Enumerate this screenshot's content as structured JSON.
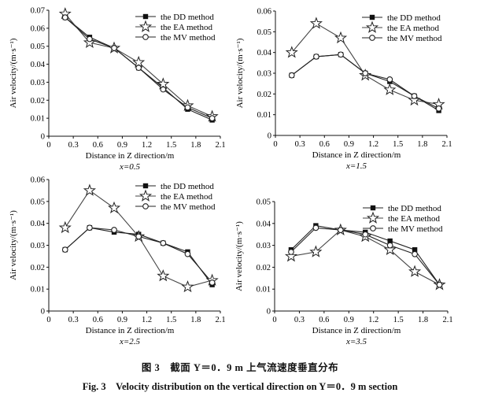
{
  "chart_data": [
    {
      "type": "line",
      "panel_label": "x=0.5",
      "xlabel": "Distance in Z direction/m",
      "ylabel": "Air velocity/(m·s⁻¹)",
      "xlim": [
        0,
        2.1
      ],
      "ylim": [
        0,
        0.07
      ],
      "xticks": [
        "0",
        "0.3",
        "0.6",
        "0.9",
        "1.2",
        "1.5",
        "1.8",
        "2.1"
      ],
      "yticks": [
        "0",
        "0.01",
        "0.02",
        "0.03",
        "0.04",
        "0.05",
        "0.06",
        "0.07"
      ],
      "legend": "top-right",
      "x": [
        0.2,
        0.5,
        0.8,
        1.1,
        1.4,
        1.7,
        2.0
      ],
      "series": [
        {
          "name": "the DD method",
          "marker": "square",
          "values": [
            0.066,
            0.055,
            0.049,
            0.038,
            0.027,
            0.015,
            0.009
          ]
        },
        {
          "name": "the EA method",
          "marker": "star",
          "values": [
            0.068,
            0.052,
            0.049,
            0.041,
            0.029,
            0.017,
            0.011
          ]
        },
        {
          "name": "the MV method",
          "marker": "circle",
          "values": [
            0.066,
            0.054,
            0.049,
            0.038,
            0.026,
            0.016,
            0.01
          ]
        }
      ]
    },
    {
      "type": "line",
      "panel_label": "x=1.5",
      "xlabel": "Distance in Z direction/m",
      "ylabel": "Air velocity/(m·s⁻¹)",
      "xlim": [
        0,
        2.1
      ],
      "ylim": [
        0,
        0.06
      ],
      "xticks": [
        "0",
        "0.3",
        "0.6",
        "0.9",
        "1.2",
        "1.5",
        "1.8",
        "2.1"
      ],
      "yticks": [
        "0",
        "0.01",
        "0.02",
        "0.03",
        "0.04",
        "0.05",
        "0.06"
      ],
      "legend": "top-right",
      "x": [
        0.2,
        0.5,
        0.8,
        1.1,
        1.4,
        1.7,
        2.0
      ],
      "series": [
        {
          "name": "the DD method",
          "marker": "square",
          "values": [
            0.029,
            0.038,
            0.039,
            0.03,
            0.026,
            0.019,
            0.012
          ]
        },
        {
          "name": "the EA method",
          "marker": "star",
          "values": [
            0.04,
            0.054,
            0.047,
            0.029,
            0.022,
            0.017,
            0.015
          ]
        },
        {
          "name": "the MV method",
          "marker": "circle",
          "values": [
            0.029,
            0.038,
            0.039,
            0.03,
            0.027,
            0.019,
            0.013
          ]
        }
      ]
    },
    {
      "type": "line",
      "panel_label": "x=2.5",
      "xlabel": "Distance in Z direction/m",
      "ylabel": "Air velocity/(m·s⁻¹)",
      "xlim": [
        0,
        2.1
      ],
      "ylim": [
        0,
        0.06
      ],
      "xticks": [
        "0",
        "0.3",
        "0.6",
        "0.9",
        "1.2",
        "1.5",
        "1.8",
        "2.1"
      ],
      "yticks": [
        "0",
        "0.01",
        "0.02",
        "0.03",
        "0.04",
        "0.05",
        "0.06"
      ],
      "legend": "top-right",
      "x": [
        0.2,
        0.5,
        0.8,
        1.1,
        1.4,
        1.7,
        2.0
      ],
      "series": [
        {
          "name": "the DD method",
          "marker": "square",
          "values": [
            0.028,
            0.038,
            0.036,
            0.035,
            0.031,
            0.027,
            0.012
          ]
        },
        {
          "name": "the EA method",
          "marker": "star",
          "values": [
            0.038,
            0.055,
            0.047,
            0.034,
            0.016,
            0.011,
            0.014
          ]
        },
        {
          "name": "the MV method",
          "marker": "circle",
          "values": [
            0.028,
            0.038,
            0.037,
            0.034,
            0.031,
            0.026,
            0.013
          ]
        }
      ]
    },
    {
      "type": "line",
      "panel_label": "x=3.5",
      "xlabel": "Distance in Z direction/m",
      "ylabel": "Air velocity/(m·s⁻¹)",
      "xlim": [
        0,
        2.1
      ],
      "ylim": [
        0,
        0.05
      ],
      "xticks": [
        "0",
        "0.3",
        "0.6",
        "0.9",
        "1.2",
        "1.5",
        "1.8",
        "2.1"
      ],
      "yticks": [
        "0",
        "0.01",
        "0.02",
        "0.03",
        "0.04",
        "0.05"
      ],
      "legend": "top-right",
      "x": [
        0.2,
        0.5,
        0.8,
        1.1,
        1.4,
        1.7,
        2.0
      ],
      "series": [
        {
          "name": "the DD method",
          "marker": "square",
          "values": [
            0.028,
            0.039,
            0.037,
            0.036,
            0.032,
            0.028,
            0.012
          ]
        },
        {
          "name": "the EA method",
          "marker": "star",
          "values": [
            0.025,
            0.027,
            0.037,
            0.034,
            0.028,
            0.018,
            0.012
          ]
        },
        {
          "name": "the MV method",
          "marker": "circle",
          "values": [
            0.027,
            0.038,
            0.037,
            0.035,
            0.03,
            0.026,
            0.012
          ]
        }
      ]
    }
  ],
  "caption_cn": "图 3　截面 Y＝0．9 m 上气流速度垂直分布",
  "caption_en": "Fig. 3　Velocity distribution on the vertical direction on Y＝0．9 m section"
}
